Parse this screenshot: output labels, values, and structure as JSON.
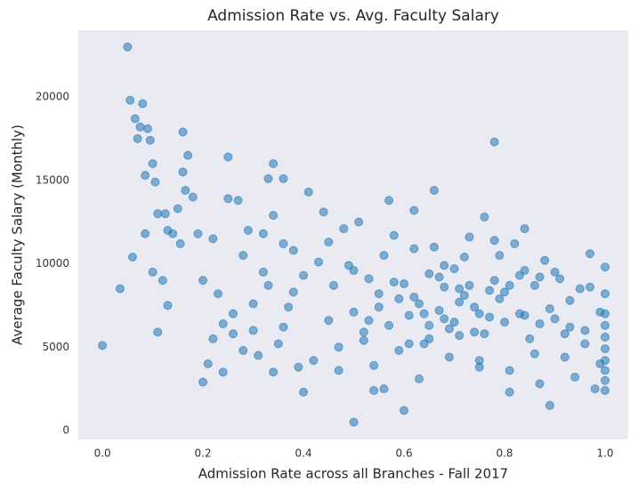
{
  "chart_data": {
    "type": "scatter",
    "title": "Admission Rate vs. Avg. Faculty Salary",
    "x_label": "Admission Rate across all Branches - Fall 2017",
    "y_label": "Average Faculty Salary (Monthly)",
    "color": "#1f77b4",
    "grid": false,
    "xlim": [
      -0.048,
      1.046
    ],
    "ylim": [
      -533,
      24000
    ],
    "xticks": [
      {
        "value": 0,
        "label": "0.0"
      },
      0.2,
      0.4,
      0.6,
      0.8,
      {
        "value": 1,
        "label": "1.0"
      }
    ],
    "yticks": [
      0,
      5000,
      10000,
      15000,
      20000
    ],
    "x": [
      0.0,
      0.035,
      0.05,
      0.055,
      0.06,
      0.065,
      0.07,
      0.075,
      0.08,
      0.085,
      0.09,
      0.095,
      0.1,
      0.105,
      0.11,
      0.12,
      0.13,
      0.16,
      0.17,
      0.165,
      0.2,
      0.21,
      0.25,
      0.33,
      0.34,
      0.36,
      0.5,
      0.6,
      0.78,
      0.89,
      0.085,
      0.1,
      0.11,
      0.125,
      0.13,
      0.14,
      0.15,
      0.155,
      0.16,
      0.18,
      0.19,
      0.2,
      0.22,
      0.23,
      0.24,
      0.25,
      0.26,
      0.27,
      0.28,
      0.29,
      0.3,
      0.31,
      0.32,
      0.33,
      0.34,
      0.35,
      0.36,
      0.37,
      0.38,
      0.39,
      0.4,
      0.41,
      0.42,
      0.43,
      0.44,
      0.45,
      0.46,
      0.47,
      0.48,
      0.49,
      0.22,
      0.24,
      0.26,
      0.28,
      0.3,
      0.32,
      0.34,
      0.36,
      0.38,
      0.4,
      0.5,
      0.51,
      0.52,
      0.53,
      0.54,
      0.55,
      0.56,
      0.57,
      0.58,
      0.59,
      0.6,
      0.61,
      0.62,
      0.63,
      0.64,
      0.65,
      0.66,
      0.67,
      0.68,
      0.69,
      0.7,
      0.71,
      0.72,
      0.73,
      0.74,
      0.75,
      0.76,
      0.77,
      0.78,
      0.79,
      0.8,
      0.81,
      0.82,
      0.83,
      0.84,
      0.85,
      0.86,
      0.87,
      0.88,
      0.89,
      0.9,
      0.91,
      0.92,
      0.93,
      0.94,
      0.95,
      0.96,
      0.97,
      0.98,
      0.99,
      1.0,
      1.0,
      1.0,
      1.0,
      1.0,
      1.0,
      1.0,
      1.0,
      1.0,
      1.0,
      0.52,
      0.55,
      0.58,
      0.61,
      0.64,
      0.67,
      0.7,
      0.73,
      0.76,
      0.79,
      0.62,
      0.65,
      0.68,
      0.71,
      0.74,
      0.77,
      0.8,
      0.83,
      0.86,
      0.92,
      0.54,
      0.57,
      0.63,
      0.66,
      0.69,
      0.72,
      0.75,
      0.81,
      0.84,
      0.87,
      0.45,
      0.47,
      0.5,
      0.53,
      0.56,
      0.59,
      0.62,
      0.65,
      0.68,
      0.71,
      0.75,
      0.78,
      0.81,
      0.84,
      0.87,
      0.9,
      0.93,
      0.96,
      0.97,
      0.99
    ],
    "y": [
      5100,
      8500,
      23000,
      19800,
      10400,
      18700,
      17500,
      18200,
      19600,
      15300,
      18100,
      17400,
      16000,
      14900,
      5900,
      9000,
      7500,
      17900,
      16500,
      14400,
      2900,
      4000,
      16400,
      15100,
      16000,
      15100,
      500,
      1200,
      17300,
      1500,
      11800,
      9500,
      13000,
      13000,
      12000,
      11800,
      13300,
      11200,
      15500,
      14000,
      11800,
      9000,
      11500,
      8200,
      6400,
      13900,
      7000,
      13800,
      10500,
      12000,
      6000,
      4500,
      11800,
      8700,
      12900,
      5200,
      11200,
      7400,
      10800,
      3800,
      9300,
      14300,
      4200,
      10100,
      13100,
      6600,
      8700,
      3600,
      12100,
      9900,
      5500,
      3500,
      5800,
      4800,
      7600,
      9500,
      3500,
      6200,
      8300,
      2300,
      7100,
      12500,
      5400,
      9100,
      3900,
      8200,
      10500,
      6300,
      11700,
      4800,
      8800,
      6900,
      13200,
      7600,
      5200,
      9400,
      14400,
      7200,
      8600,
      6100,
      9700,
      5700,
      8100,
      11600,
      7400,
      4200,
      12800,
      6800,
      9000,
      7900,
      8300,
      3600,
      11200,
      7000,
      9600,
      5500,
      8700,
      6400,
      10200,
      7300,
      6700,
      9100,
      4400,
      7800,
      3200,
      8500,
      6000,
      10600,
      2500,
      7100,
      2400,
      3000,
      3600,
      4200,
      4900,
      5600,
      6300,
      7000,
      8200,
      9800,
      5900,
      7400,
      8900,
      5200,
      7000,
      9200,
      6500,
      8700,
      5800,
      10500,
      8000,
      6300,
      9900,
      7700,
      5900,
      8400,
      6500,
      9300,
      4600,
      5800,
      2400,
      13800,
      3100,
      11000,
      4400,
      10400,
      3800,
      2300,
      12100,
      2800,
      11300,
      5000,
      9600,
      6600,
      2500,
      7900,
      10900,
      5500,
      6700,
      8500,
      7000,
      11400,
      8700,
      6900,
      9200,
      9500,
      6200,
      5200,
      8600,
      4000
    ]
  }
}
